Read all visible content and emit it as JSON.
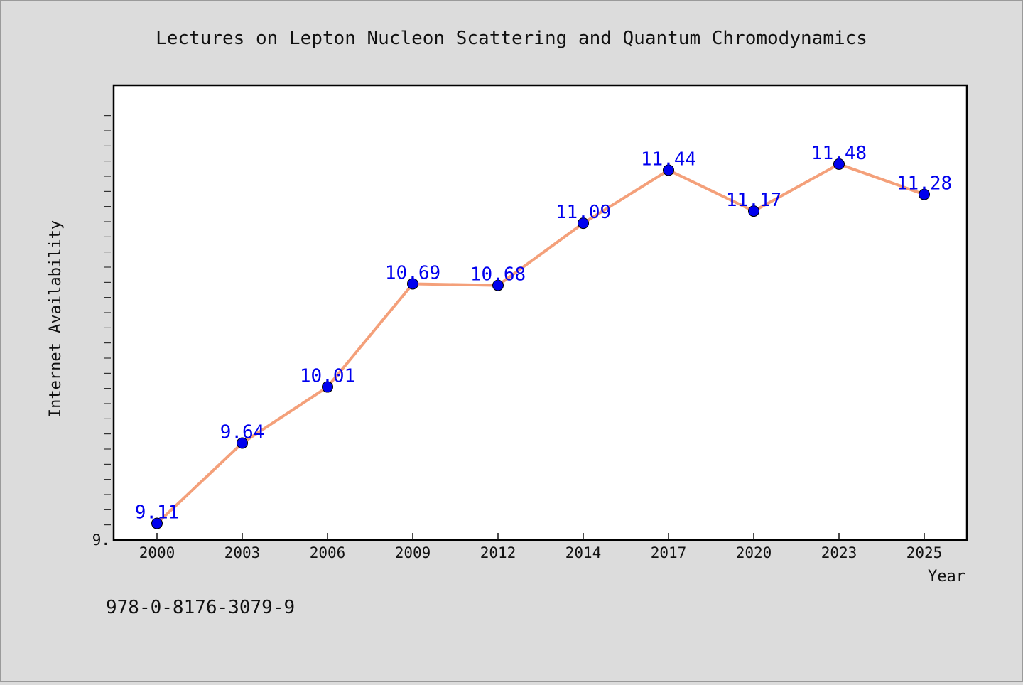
{
  "chart_data": {
    "type": "line",
    "title": "Lectures on Lepton Nucleon Scattering and Quantum Chromodynamics",
    "xlabel": "Year",
    "ylabel": "Internet Availability",
    "categories": [
      "2000",
      "2003",
      "2006",
      "2009",
      "2012",
      "2014",
      "2017",
      "2020",
      "2023",
      "2025"
    ],
    "series": [
      {
        "values": [
          9.11,
          9.64,
          10.01,
          10.69,
          10.68,
          11.09,
          11.44,
          11.17,
          11.48,
          11.28
        ],
        "data_labels": [
          "9.11",
          "9.64",
          "10.01",
          "10.69",
          "10.68",
          "11.09",
          "11.44",
          "11.17",
          "11.48",
          "11.28"
        ]
      }
    ],
    "ylim": [
      9.0,
      12.0
    ],
    "y_tick_labels": [
      "9."
    ],
    "grid": false,
    "legend": "none",
    "colors": {
      "line": "#f4a07a",
      "marker": "#0000ee",
      "data_label": "#0000ee",
      "background": "#dcdcdc",
      "plot_area": "#ffffff"
    }
  },
  "footer": {
    "isbn": "978-0-8176-3079-9"
  }
}
